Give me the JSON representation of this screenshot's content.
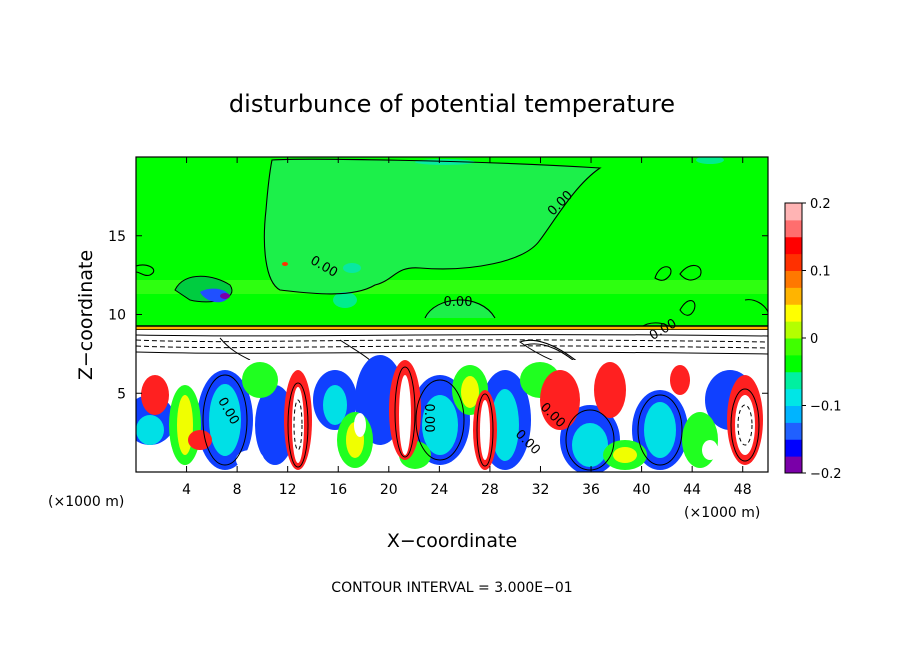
{
  "chart_data": {
    "type": "heatmap",
    "title": "disturbunce of potential temperature",
    "xlabel": "X−coordinate",
    "ylabel": "Z−coordinate",
    "x_unit_left": "(×1000 m)",
    "x_unit_right": "(×1000 m)",
    "xlim": [
      0,
      50
    ],
    "ylim": [
      0,
      20
    ],
    "x_ticks": [
      4,
      8,
      12,
      16,
      20,
      24,
      28,
      32,
      36,
      40,
      44,
      48
    ],
    "y_ticks": [
      5,
      10,
      15
    ],
    "colorbar": {
      "range": [
        -0.2,
        0.2
      ],
      "tick_values": [
        0.2,
        0.1,
        0,
        -0.1,
        -0.2
      ],
      "tick_labels": [
        "0.2",
        "0.1",
        "0",
        "−0.1",
        "−0.2"
      ],
      "colors": [
        "#7a00a8",
        "#0000ff",
        "#2060ff",
        "#00b4ff",
        "#00e6e6",
        "#00f0a0",
        "#00ff00",
        "#40ff00",
        "#b4ff00",
        "#ffff00",
        "#ffb400",
        "#ff7800",
        "#ff3000",
        "#ff0000",
        "#ff6e6e",
        "#ffb4b4"
      ]
    },
    "contour_labels": [
      "0.00",
      "0.00",
      "0.00",
      "0.00",
      "0.00",
      "0.00",
      "0.00",
      "0.00"
    ],
    "note": "CONTOUR INTERVAL = 3.000E−01"
  }
}
